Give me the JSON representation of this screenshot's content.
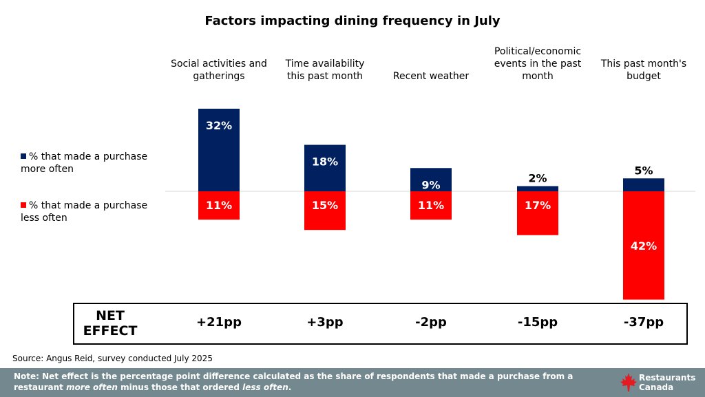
{
  "chart_data": {
    "type": "bar",
    "title": "Factors impacting dining frequency in July",
    "categories": [
      "Social activities and gatherings",
      "Time availability this past month",
      "Recent weather",
      "Political/economic events in the past month",
      "This past month's budget"
    ],
    "category_lines": [
      [
        "Social activities and",
        "gatherings"
      ],
      [
        "Time availability",
        "this past month"
      ],
      [
        "Recent weather"
      ],
      [
        "Political/economic",
        "events in the past",
        "month"
      ],
      [
        "This past month's",
        "budget"
      ]
    ],
    "series": [
      {
        "name": "% that made a purchase more often",
        "legend_lines": [
          "% that made a purchase",
          "more often"
        ],
        "values": [
          32,
          18,
          9,
          2,
          5
        ],
        "labels": [
          "32%",
          "18%",
          "9%",
          "2%",
          "5%"
        ],
        "color": "#002060"
      },
      {
        "name": "% that made a purchase less often",
        "legend_lines": [
          "% that made a purchase",
          "less often"
        ],
        "values": [
          11,
          15,
          11,
          17,
          42
        ],
        "labels": [
          "11%",
          "15%",
          "11%",
          "17%",
          "42%"
        ],
        "color": "#ff0000"
      }
    ],
    "net_effect_label_lines": [
      "NET",
      "EFFECT"
    ],
    "net_effect": [
      "+21pp",
      "+3pp",
      "-2pp",
      "-15pp",
      "-37pp"
    ]
  },
  "source": "Source: Angus Reid, survey conducted July 2025",
  "footer": {
    "note_parts": {
      "a": "Note: Net effect is the percentage point difference calculated as the share of respondents that made a purchase from a restaurant ",
      "b": "more often",
      "c": " minus those that ordered ",
      "d": "less often",
      "e": "."
    },
    "logo_line1": "Restaurants",
    "logo_line2": "Canada",
    "logo_color": "#e31b23"
  }
}
